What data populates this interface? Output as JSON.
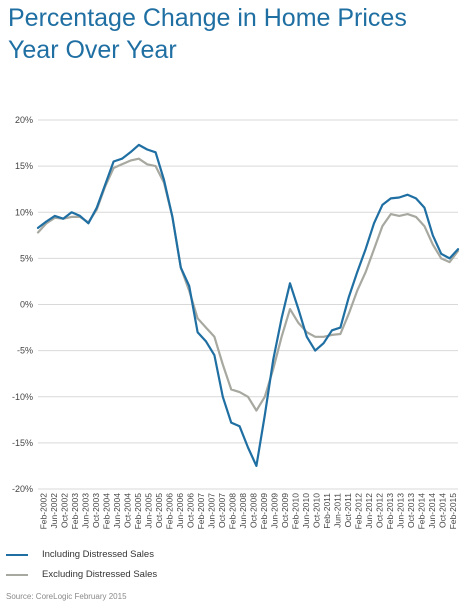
{
  "title_line1": "Percentage Change in Home Prices",
  "title_line2": "Year Over Year",
  "source": "Source: CoreLogic February 2015",
  "colors": {
    "including": "#1f6fa3",
    "excluding": "#a7a8a0",
    "grid": "#d9d9d9"
  },
  "chart_data": {
    "type": "line",
    "title": "Percentage Change in Home Prices Year Over Year",
    "xlabel": "",
    "ylabel": "",
    "ylim": [
      -20,
      20
    ],
    "y_ticks": [
      20,
      15,
      10,
      5,
      0,
      -5,
      -10,
      -15,
      -20
    ],
    "y_tick_labels": [
      "20%",
      "15%",
      "10%",
      "5%",
      "0%",
      "-5%",
      "-10%",
      "-15%",
      "-20%"
    ],
    "x_tick_labels": [
      "Feb-2002",
      "Jun-2002",
      "Oct-2002",
      "Feb-2003",
      "Jun-2003",
      "Oct-2003",
      "Feb-2004",
      "Jun-2004",
      "Oct-2004",
      "Feb-2005",
      "Jun-2005",
      "Oct-2005",
      "Feb-2006",
      "Jun-2006",
      "Oct-2006",
      "Feb-2007",
      "Jun-2007",
      "Oct-2007",
      "Feb-2008",
      "Jun-2008",
      "Oct-2008",
      "Feb-2009",
      "Jun-2009",
      "Oct-2009",
      "Feb-2010",
      "Jun-2010",
      "Oct-2010",
      "Feb-2011",
      "Jun-2011",
      "Oct-2011",
      "Feb-2012",
      "Jun-2012",
      "Oct-2012",
      "Feb-2013",
      "Jun-2013",
      "Oct-2013",
      "Feb-2014",
      "Jun-2014",
      "Oct-2014",
      "Feb-2015"
    ],
    "grid": true,
    "legend_position": "bottom-left",
    "series": [
      {
        "name": "Including Distressed Sales",
        "values": [
          8.3,
          9.0,
          9.6,
          9.3,
          10.0,
          9.6,
          8.8,
          10.5,
          13.0,
          15.5,
          15.8,
          16.5,
          17.3,
          16.8,
          16.5,
          13.5,
          9.5,
          4.0,
          2.0,
          -3.0,
          -4.0,
          -5.5,
          -10.0,
          -12.8,
          -13.2,
          -15.5,
          -17.5,
          -12.0,
          -6.0,
          -1.5,
          2.3,
          -0.5,
          -3.5,
          -5.0,
          -4.2,
          -2.8,
          -2.5,
          0.8,
          3.5,
          6.0,
          8.8,
          10.8,
          11.5,
          11.6,
          11.9,
          11.5,
          10.5,
          7.5,
          5.5,
          5.0,
          6.0
        ]
      },
      {
        "name": "Excluding Distressed Sales",
        "values": [
          7.8,
          8.8,
          9.4,
          9.3,
          9.5,
          9.5,
          8.9,
          10.3,
          12.8,
          14.8,
          15.2,
          15.6,
          15.8,
          15.2,
          15.0,
          13.2,
          9.5,
          4.0,
          1.5,
          -1.5,
          -2.5,
          -3.5,
          -6.5,
          -9.2,
          -9.5,
          -10.0,
          -11.5,
          -10.0,
          -7.0,
          -3.5,
          -0.5,
          -2.0,
          -3.0,
          -3.5,
          -3.5,
          -3.3,
          -3.2,
          -1.0,
          1.5,
          3.5,
          6.0,
          8.5,
          9.8,
          9.6,
          9.8,
          9.5,
          8.5,
          6.5,
          5.0,
          4.6,
          5.8
        ]
      }
    ]
  }
}
